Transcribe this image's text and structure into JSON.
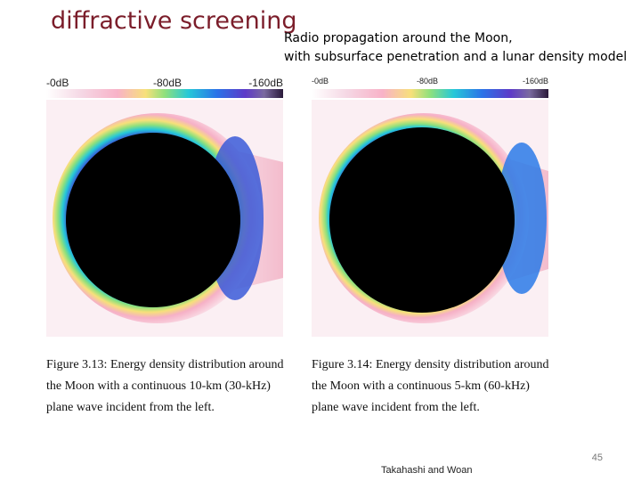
{
  "slide": {
    "title": "diffractive screening",
    "subtitle_line1": "Radio propagation around the Moon,",
    "subtitle_line2": "with subsurface penetration and a lunar density model",
    "page_number": "45",
    "credit": "Takahashi and Woan"
  },
  "figures": [
    {
      "colorbar_labels": [
        "-0dB",
        "-80dB",
        "-160dB"
      ],
      "caption": "Figure 3.13: Energy density distribution around the Moon with a continuous 10-km (30-kHz) plane wave incident from the left."
    },
    {
      "colorbar_labels": [
        "-0dB",
        "-80dB",
        "-160dB"
      ],
      "caption": "Figure 3.14: Energy density distribution around the Moon with a continuous 5-km (60-kHz) plane wave incident from the left."
    }
  ],
  "colors": {
    "title": "#7b1d2a",
    "moon_interior": "#000000"
  }
}
